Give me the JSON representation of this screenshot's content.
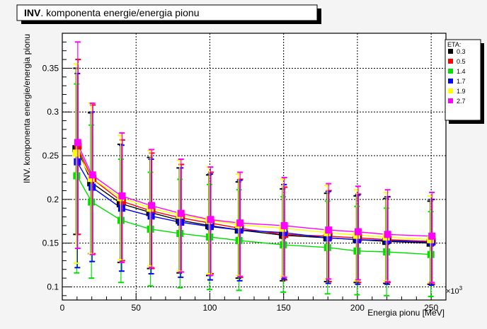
{
  "chart_data": {
    "type": "line",
    "title": "INV. komponenta energie/energia pionu",
    "title_bold_part": "INV",
    "title_rest": ". komponenta energie/energia pionu",
    "xlabel": "Energia pionu [MeV]",
    "ylabel": "INV. komponenta energie/energia pionu",
    "x_exponent_label": "×10",
    "x_exponent_sup": "3",
    "xlim": [
      0,
      260
    ],
    "ylim": [
      0.085,
      0.39
    ],
    "x_ticks": [
      0,
      50,
      100,
      150,
      200,
      250
    ],
    "x_tick_labels": [
      "0",
      "50",
      "100",
      "150",
      "200",
      "250"
    ],
    "y_ticks": [
      0.1,
      0.15,
      0.2,
      0.25,
      0.3,
      0.35
    ],
    "y_tick_labels": [
      "0.1",
      "0.15",
      "0.2",
      "0.25",
      "0.3",
      "0.35"
    ],
    "grid": true,
    "legend_position": "top-right",
    "legend_title": "ETA:",
    "x": [
      10,
      20,
      40,
      60,
      80,
      100,
      120,
      150,
      180,
      200,
      220,
      250
    ],
    "series": [
      {
        "name": "0.3",
        "color": "#000000",
        "values": [
          0.258,
          0.219,
          0.195,
          0.185,
          0.176,
          0.17,
          0.165,
          0.159,
          0.156,
          0.154,
          0.152,
          0.15
        ],
        "err_low": [
          0.098,
          0.081,
          0.067,
          0.064,
          0.06,
          0.057,
          0.055,
          0.052,
          0.05,
          0.049,
          0.048,
          0.047
        ],
        "err_high": [
          0.092,
          0.08,
          0.068,
          0.063,
          0.06,
          0.058,
          0.055,
          0.053,
          0.051,
          0.05,
          0.049,
          0.048
        ]
      },
      {
        "name": "0.5",
        "color": "#ff0000",
        "values": [
          0.261,
          0.224,
          0.198,
          0.187,
          0.179,
          0.173,
          0.167,
          0.16,
          0.158,
          0.156,
          0.154,
          0.152
        ],
        "err_low": [
          0.101,
          0.086,
          0.068,
          0.066,
          0.062,
          0.058,
          0.056,
          0.052,
          0.052,
          0.051,
          0.049,
          0.049
        ],
        "err_high": [
          0.099,
          0.084,
          0.07,
          0.066,
          0.061,
          0.058,
          0.056,
          0.054,
          0.052,
          0.05,
          0.049,
          0.048
        ]
      },
      {
        "name": "1.4",
        "color": "#00e000",
        "values": [
          0.227,
          0.197,
          0.176,
          0.166,
          0.161,
          0.157,
          0.153,
          0.148,
          0.145,
          0.141,
          0.14,
          0.137
        ],
        "err_low": [
          0.111,
          0.087,
          0.071,
          0.065,
          0.062,
          0.06,
          0.057,
          0.054,
          0.053,
          0.05,
          0.05,
          0.048
        ],
        "err_high": [
          0.105,
          0.088,
          0.07,
          0.065,
          0.062,
          0.06,
          0.058,
          0.055,
          0.053,
          0.051,
          0.05,
          0.049
        ]
      },
      {
        "name": "1.7",
        "color": "#0000ff",
        "values": [
          0.243,
          0.214,
          0.19,
          0.181,
          0.174,
          0.169,
          0.165,
          0.162,
          0.156,
          0.154,
          0.153,
          0.151
        ],
        "err_low": [
          0.121,
          0.085,
          0.072,
          0.066,
          0.063,
          0.061,
          0.058,
          0.053,
          0.052,
          0.051,
          0.05,
          0.049
        ],
        "err_high": [
          0.101,
          0.086,
          0.072,
          0.065,
          0.062,
          0.06,
          0.057,
          0.055,
          0.053,
          0.051,
          0.05,
          0.049
        ]
      },
      {
        "name": "1.9",
        "color": "#ffff00",
        "values": [
          0.253,
          0.224,
          0.202,
          0.19,
          0.182,
          0.176,
          0.171,
          0.167,
          0.162,
          0.159,
          0.157,
          0.154
        ],
        "err_low": [
          0.126,
          0.086,
          0.071,
          0.066,
          0.064,
          0.061,
          0.058,
          0.055,
          0.053,
          0.052,
          0.05,
          0.049
        ],
        "err_high": [
          0.102,
          0.086,
          0.071,
          0.066,
          0.063,
          0.061,
          0.058,
          0.056,
          0.054,
          0.052,
          0.051,
          0.05
        ]
      },
      {
        "name": "2.7",
        "color": "#ff00ff",
        "values": [
          0.265,
          0.228,
          0.204,
          0.193,
          0.184,
          0.177,
          0.173,
          0.17,
          0.165,
          0.163,
          0.16,
          0.158
        ],
        "err_low": [
          0.121,
          0.091,
          0.076,
          0.071,
          0.067,
          0.064,
          0.061,
          0.059,
          0.056,
          0.055,
          0.054,
          0.053
        ],
        "err_high": [
          0.115,
          0.082,
          0.072,
          0.064,
          0.062,
          0.06,
          0.058,
          0.055,
          0.053,
          0.052,
          0.051,
          0.05
        ]
      }
    ]
  }
}
